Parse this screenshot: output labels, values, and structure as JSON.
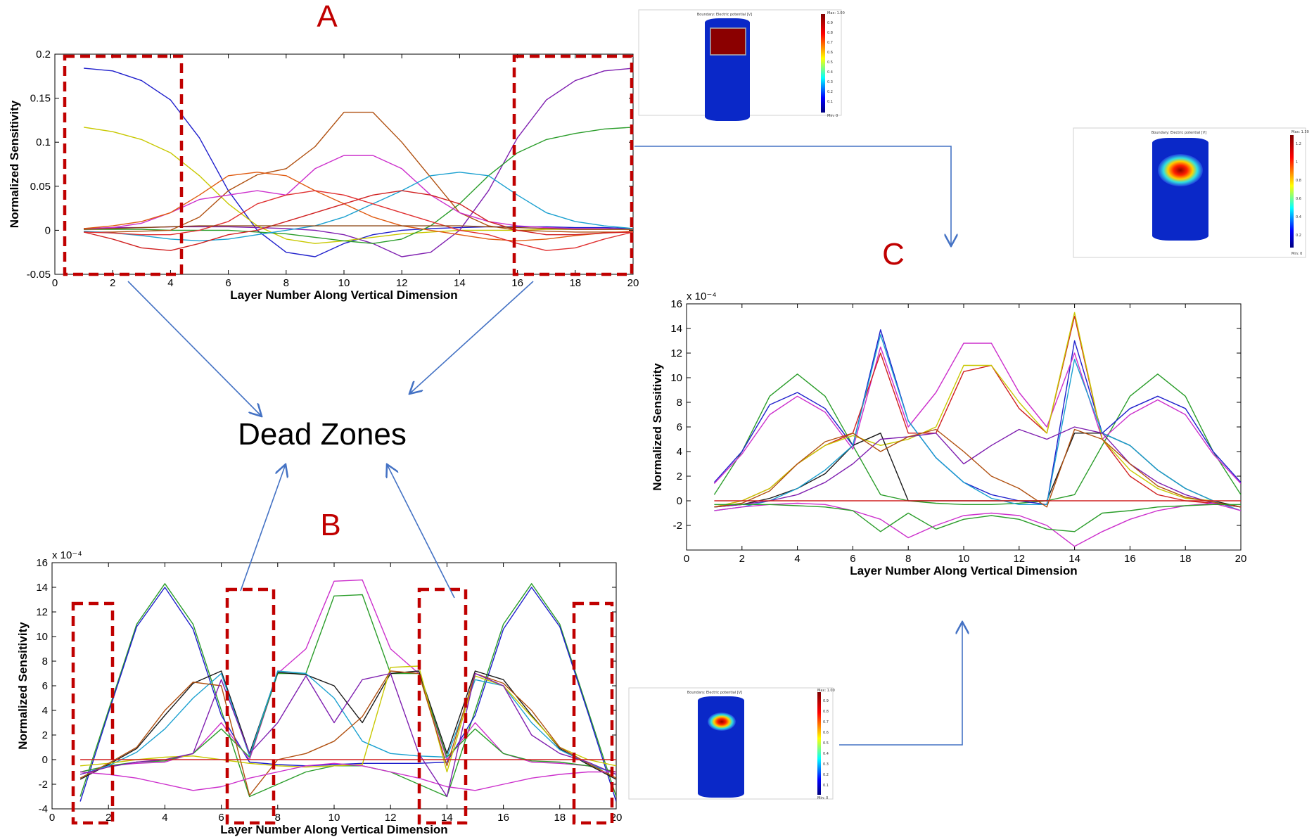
{
  "figure": {
    "dead_zones_label": "Dead Zones"
  },
  "colors": {
    "dead_zone_box": "#c00000",
    "arrow": "#4472c4",
    "panel_letter": "#c00000"
  },
  "chart_data": [
    {
      "id": "A",
      "panel_label": "A",
      "type": "line",
      "xlabel": "Layer Number Along Vertical Dimension",
      "ylabel": "Normalized Sensitivity",
      "exponent_label": "",
      "xlim": [
        0,
        20
      ],
      "ylim": [
        -0.05,
        0.2
      ],
      "xticks": [
        "0",
        "2",
        "4",
        "6",
        "8",
        "10",
        "12",
        "14",
        "16",
        "18",
        "20"
      ],
      "yticks": [
        "-0.05",
        "0",
        "0.05",
        "0.1",
        "0.15",
        "0.2"
      ],
      "ytick_values": [
        -0.05,
        0,
        0.05,
        0.1,
        0.15,
        0.2
      ],
      "x": [
        1,
        2,
        3,
        4,
        5,
        6,
        7,
        8,
        9,
        10,
        11,
        12,
        13,
        14,
        15,
        16,
        17,
        18,
        19,
        20
      ],
      "series": [
        {
          "color": "#1f1fcc",
          "values": [
            0.184,
            0.181,
            0.17,
            0.148,
            0.105,
            0.045,
            0.0,
            -0.025,
            -0.03,
            -0.015,
            -0.005,
            0.0,
            0.002,
            0.003,
            0.004,
            0.004,
            0.004,
            0.003,
            0.003,
            0.002
          ]
        },
        {
          "color": "#7f1fb0",
          "values": [
            0.002,
            0.003,
            0.003,
            0.004,
            0.004,
            0.004,
            0.003,
            0.002,
            0.0,
            -0.005,
            -0.015,
            -0.03,
            -0.025,
            0.0,
            0.045,
            0.105,
            0.148,
            0.17,
            0.181,
            0.184
          ]
        },
        {
          "color": "#c8c800",
          "values": [
            0.117,
            0.112,
            0.103,
            0.088,
            0.062,
            0.03,
            0.005,
            -0.01,
            -0.015,
            -0.012,
            -0.008,
            -0.004,
            -0.002,
            0.0,
            0.0,
            0.0,
            0.001,
            0.001,
            0.001,
            0.001
          ]
        },
        {
          "color": "#2a9d2a",
          "values": [
            0.001,
            0.001,
            0.001,
            0.0,
            0.0,
            0.0,
            -0.002,
            -0.004,
            -0.008,
            -0.012,
            -0.015,
            -0.01,
            0.005,
            0.03,
            0.062,
            0.088,
            0.103,
            0.11,
            0.115,
            0.117
          ]
        },
        {
          "color": "#b05010",
          "values": [
            -0.002,
            -0.002,
            -0.001,
            0.0,
            0.015,
            0.045,
            0.063,
            0.07,
            0.095,
            0.134,
            0.134,
            0.1,
            0.06,
            0.02,
            0.005,
            0.0,
            -0.001,
            -0.002,
            -0.002,
            -0.002
          ]
        },
        {
          "color": "#cc2fcc",
          "values": [
            0.002,
            0.003,
            0.008,
            0.02,
            0.035,
            0.04,
            0.045,
            0.04,
            0.07,
            0.085,
            0.085,
            0.07,
            0.04,
            0.02,
            0.01,
            0.005,
            0.003,
            0.002,
            0.002,
            0.001
          ]
        },
        {
          "color": "#e05a10",
          "values": [
            0.002,
            0.005,
            0.01,
            0.02,
            0.04,
            0.062,
            0.066,
            0.062,
            0.045,
            0.03,
            0.015,
            0.005,
            0.0,
            -0.005,
            -0.01,
            -0.012,
            -0.01,
            -0.006,
            -0.003,
            -0.001
          ]
        },
        {
          "color": "#1aa0d0",
          "values": [
            -0.001,
            -0.003,
            -0.006,
            -0.01,
            -0.012,
            -0.01,
            -0.005,
            0.0,
            0.005,
            0.015,
            0.03,
            0.045,
            0.062,
            0.066,
            0.062,
            0.04,
            0.02,
            0.01,
            0.005,
            0.002
          ]
        },
        {
          "color": "#d02020",
          "values": [
            -0.002,
            -0.01,
            -0.02,
            -0.023,
            -0.015,
            -0.005,
            0.0,
            0.01,
            0.02,
            0.03,
            0.04,
            0.045,
            0.04,
            0.03,
            0.01,
            0.0,
            -0.005,
            -0.005,
            -0.003,
            -0.002
          ]
        },
        {
          "color": "#e03030",
          "values": [
            -0.002,
            -0.003,
            -0.005,
            -0.005,
            0.0,
            0.01,
            0.03,
            0.04,
            0.045,
            0.04,
            0.03,
            0.02,
            0.01,
            0.0,
            -0.005,
            -0.015,
            -0.023,
            -0.02,
            -0.01,
            -0.002
          ]
        },
        {
          "color": "#8b4513",
          "values": [
            0.001,
            0.002,
            0.003,
            0.004,
            0.005,
            0.005,
            0.005,
            0.005,
            0.005,
            0.005,
            0.005,
            0.005,
            0.005,
            0.005,
            0.004,
            0.003,
            0.002,
            0.001,
            0.001,
            0.001
          ]
        }
      ]
    },
    {
      "id": "B",
      "panel_label": "B",
      "type": "line",
      "xlabel": "Layer Number Along Vertical Dimension",
      "ylabel": "Normalized Sensitivity",
      "exponent_label": "x 10⁻⁴",
      "xlim": [
        0,
        20
      ],
      "ylim": [
        -4,
        16
      ],
      "xticks": [
        "0",
        "2",
        "4",
        "6",
        "8",
        "10",
        "12",
        "14",
        "16",
        "18",
        "20"
      ],
      "yticks": [
        "-4",
        "-2",
        "0",
        "2",
        "4",
        "6",
        "8",
        "10",
        "12",
        "14",
        "16"
      ],
      "ytick_values": [
        -4,
        -2,
        0,
        2,
        4,
        6,
        8,
        10,
        12,
        14,
        16
      ],
      "x": [
        1,
        2,
        3,
        4,
        5,
        6,
        7,
        8,
        9,
        10,
        11,
        12,
        13,
        14,
        15,
        16,
        17,
        18,
        19,
        20
      ],
      "series": [
        {
          "color": "#2a9d2a",
          "values": [
            -3.0,
            4.0,
            11.0,
            14.3,
            11.0,
            4.0,
            -3.0,
            -2.0,
            -1.0,
            -0.5,
            -0.5,
            -1.0,
            -2.0,
            -3.0,
            4.0,
            11.0,
            14.3,
            11.0,
            4.0,
            -3.0
          ]
        },
        {
          "color": "#1f1fcc",
          "values": [
            -3.4,
            3.8,
            10.8,
            14.0,
            10.6,
            3.6,
            -0.2,
            -0.4,
            -0.5,
            -0.4,
            -0.3,
            -0.3,
            -0.3,
            -0.2,
            3.6,
            10.6,
            14.0,
            10.8,
            3.8,
            -3.4
          ]
        },
        {
          "color": "#cc2fcc",
          "values": [
            -1.0,
            -0.5,
            -0.3,
            -0.2,
            0.5,
            3.0,
            0.0,
            7.0,
            9.0,
            14.5,
            14.6,
            9.0,
            7.0,
            0.0,
            3.0,
            0.5,
            -0.2,
            -0.3,
            -0.5,
            -1.0
          ]
        },
        {
          "color": "#2a9d2a",
          "values": [
            -1.0,
            -0.5,
            -0.2,
            -0.1,
            0.5,
            2.5,
            0.2,
            7.0,
            7.0,
            13.3,
            13.4,
            7.0,
            7.0,
            0.2,
            2.5,
            0.5,
            -0.1,
            -0.2,
            -0.5,
            -1.0
          ]
        },
        {
          "color": "#1a1a1a",
          "values": [
            -1.6,
            -0.4,
            0.9,
            3.6,
            6.2,
            7.2,
            0.5,
            7.1,
            6.9,
            6.0,
            3.0,
            7.0,
            7.2,
            0.5,
            7.2,
            6.5,
            3.6,
            0.9,
            -0.4,
            -1.6
          ]
        },
        {
          "color": "#1aa0d0",
          "values": [
            -1.2,
            -0.5,
            0.6,
            2.5,
            5.0,
            7.0,
            0.3,
            7.2,
            7.0,
            5.0,
            1.5,
            0.5,
            0.3,
            0.2,
            6.5,
            6.0,
            3.0,
            0.8,
            -0.3,
            -1.2
          ]
        },
        {
          "color": "#c8c800",
          "values": [
            -0.5,
            -0.3,
            0.0,
            0.2,
            0.3,
            0.0,
            -0.3,
            -0.5,
            -0.6,
            -0.5,
            -0.4,
            7.5,
            7.6,
            -1.0,
            6.8,
            6.0,
            3.5,
            1.0,
            0.0,
            -0.5
          ]
        },
        {
          "color": "#b05010",
          "values": [
            -1.5,
            -0.3,
            1.0,
            4.0,
            6.3,
            6.0,
            -2.9,
            0.0,
            0.5,
            1.5,
            3.5,
            7.2,
            7.0,
            -0.5,
            7.0,
            6.2,
            4.0,
            1.0,
            -0.3,
            -1.5
          ]
        },
        {
          "color": "#cc2fcc",
          "values": [
            -1.0,
            -1.2,
            -1.5,
            -2.0,
            -2.5,
            -2.2,
            -1.5,
            -1.0,
            -0.5,
            -0.3,
            -0.5,
            -1.0,
            -1.5,
            -2.2,
            -2.5,
            -2.0,
            -1.5,
            -1.2,
            -1.0,
            -1.0
          ]
        },
        {
          "color": "#7f1fb0",
          "values": [
            -1.2,
            -0.6,
            -0.2,
            0.0,
            0.5,
            6.5,
            0.5,
            3.0,
            6.8,
            3.0,
            6.5,
            7.0,
            0.5,
            -3.0,
            7.0,
            6.0,
            2.0,
            0.5,
            -0.2,
            -1.2
          ]
        },
        {
          "color": "#d02020",
          "values": [
            0.0,
            0.0,
            0.0,
            0.0,
            0.0,
            0.0,
            0.0,
            0.0,
            0.0,
            0.0,
            0.0,
            0.0,
            0.0,
            0.0,
            0.0,
            0.0,
            0.0,
            0.0,
            0.0,
            0.0
          ]
        }
      ]
    },
    {
      "id": "C",
      "panel_label": "C",
      "type": "line",
      "xlabel": "Layer Number Along Vertical Dimension",
      "ylabel": "Normalized Sensitivity",
      "exponent_label": "x 10⁻⁴",
      "xlim": [
        0,
        20
      ],
      "ylim": [
        -4,
        16
      ],
      "xticks": [
        "0",
        "2",
        "4",
        "6",
        "8",
        "10",
        "12",
        "14",
        "16",
        "18",
        "20"
      ],
      "yticks": [
        "-2",
        "0",
        "2",
        "4",
        "6",
        "8",
        "10",
        "12",
        "14",
        "16"
      ],
      "ytick_values": [
        -2,
        0,
        2,
        4,
        6,
        8,
        10,
        12,
        14,
        16
      ],
      "x": [
        1,
        2,
        3,
        4,
        5,
        6,
        7,
        8,
        9,
        10,
        11,
        12,
        13,
        14,
        15,
        16,
        17,
        18,
        19,
        20
      ],
      "series": [
        {
          "color": "#2a9d2a",
          "values": [
            0.5,
            4.0,
            8.5,
            10.3,
            8.5,
            4.5,
            0.5,
            0.0,
            -0.2,
            -0.3,
            -0.3,
            -0.2,
            0.0,
            0.5,
            4.5,
            8.5,
            10.3,
            8.5,
            4.0,
            0.5
          ]
        },
        {
          "color": "#1f1fcc",
          "values": [
            1.5,
            4.0,
            7.8,
            8.8,
            7.5,
            4.5,
            13.9,
            6.5,
            3.5,
            1.5,
            0.5,
            0.0,
            -0.3,
            13.0,
            5.5,
            7.5,
            8.5,
            7.5,
            4.0,
            1.5
          ]
        },
        {
          "color": "#cc2fcc",
          "values": [
            1.4,
            3.8,
            7.0,
            8.5,
            7.2,
            4.2,
            12.5,
            6.0,
            8.8,
            12.8,
            12.8,
            8.8,
            6.0,
            12.0,
            5.0,
            7.0,
            8.2,
            7.0,
            3.8,
            1.4
          ]
        },
        {
          "color": "#d02020",
          "values": [
            -0.5,
            0.0,
            1.0,
            3.0,
            4.5,
            5.5,
            12.0,
            5.5,
            5.5,
            10.5,
            11.0,
            7.5,
            5.5,
            15.0,
            5.0,
            2.0,
            0.5,
            0.0,
            -0.2,
            -0.5
          ]
        },
        {
          "color": "#c8c800",
          "values": [
            -0.5,
            0.0,
            1.0,
            3.0,
            4.5,
            5.3,
            4.5,
            5.0,
            6.0,
            11.0,
            11.0,
            8.0,
            5.5,
            15.3,
            5.0,
            2.5,
            1.0,
            0.2,
            0.0,
            -0.5
          ]
        },
        {
          "color": "#1a1a1a",
          "values": [
            -0.5,
            -0.3,
            0.2,
            1.0,
            2.2,
            4.5,
            5.5,
            0.0,
            0.0,
            0.0,
            0.0,
            0.0,
            0.0,
            5.5,
            5.5,
            4.5,
            2.5,
            1.0,
            0.0,
            -0.5
          ]
        },
        {
          "color": "#1aa0d0",
          "values": [
            -0.8,
            -0.5,
            0.0,
            1.0,
            2.5,
            4.5,
            13.5,
            6.5,
            3.5,
            1.5,
            0.2,
            -0.3,
            -0.3,
            11.5,
            5.5,
            4.5,
            2.5,
            1.0,
            0.0,
            -0.8
          ]
        },
        {
          "color": "#7f1fb0",
          "values": [
            -0.5,
            -0.3,
            0.0,
            0.5,
            1.5,
            3.0,
            5.0,
            5.2,
            5.5,
            3.0,
            4.5,
            5.8,
            5.0,
            6.0,
            5.5,
            3.0,
            1.5,
            0.5,
            -0.2,
            -0.5
          ]
        },
        {
          "color": "#b05010",
          "values": [
            -0.5,
            -0.2,
            0.8,
            3.0,
            4.8,
            5.5,
            4.0,
            5.2,
            5.8,
            4.0,
            2.0,
            1.0,
            -0.5,
            5.8,
            5.0,
            3.0,
            1.2,
            0.3,
            -0.1,
            -0.5
          ]
        },
        {
          "color": "#cc2fcc",
          "values": [
            -0.8,
            -0.5,
            -0.3,
            -0.2,
            -0.3,
            -0.8,
            -1.5,
            -3.0,
            -2.0,
            -1.2,
            -1.0,
            -1.2,
            -2.0,
            -3.7,
            -2.5,
            -1.5,
            -0.8,
            -0.4,
            -0.2,
            -0.8
          ]
        },
        {
          "color": "#2a9d2a",
          "values": [
            -0.3,
            -0.3,
            -0.3,
            -0.4,
            -0.5,
            -0.8,
            -2.5,
            -1.0,
            -2.3,
            -1.5,
            -1.2,
            -1.5,
            -2.3,
            -2.5,
            -1.0,
            -0.8,
            -0.5,
            -0.4,
            -0.3,
            -0.3
          ]
        },
        {
          "color": "#d02020",
          "values": [
            0.0,
            0.0,
            0.0,
            0.0,
            0.0,
            0.0,
            0.0,
            0.0,
            0.0,
            0.0,
            0.0,
            0.0,
            0.0,
            0.0,
            0.0,
            0.0,
            0.0,
            0.0,
            0.0,
            0.0
          ]
        }
      ]
    }
  ],
  "thumbnails": [
    {
      "id": "thumb-top",
      "title": "Boundary: Electric potential [V]",
      "max_label": "Max: 1.00",
      "min_label": "Min: 0",
      "colorbar_ticks": [
        "0.9",
        "0.8",
        "0.7",
        "0.6",
        "0.5",
        "0.4",
        "0.3",
        "0.2",
        "0.1"
      ],
      "hotspot": "square"
    },
    {
      "id": "thumb-right",
      "title": "Boundary: Electric potential [V]",
      "max_label": "Max: 1.30",
      "min_label": "Min: 0",
      "colorbar_ticks": [
        "1.2",
        "1",
        "0.8",
        "0.6",
        "0.4",
        "0.2"
      ],
      "hotspot": "oval-large"
    },
    {
      "id": "thumb-bottom",
      "title": "Boundary: Electric potential [V]",
      "max_label": "Max: 1.00",
      "min_label": "Min: 0",
      "colorbar_ticks": [
        "0.9",
        "0.8",
        "0.7",
        "0.6",
        "0.5",
        "0.4",
        "0.3",
        "0.2",
        "0.1"
      ],
      "hotspot": "oval-small"
    }
  ]
}
